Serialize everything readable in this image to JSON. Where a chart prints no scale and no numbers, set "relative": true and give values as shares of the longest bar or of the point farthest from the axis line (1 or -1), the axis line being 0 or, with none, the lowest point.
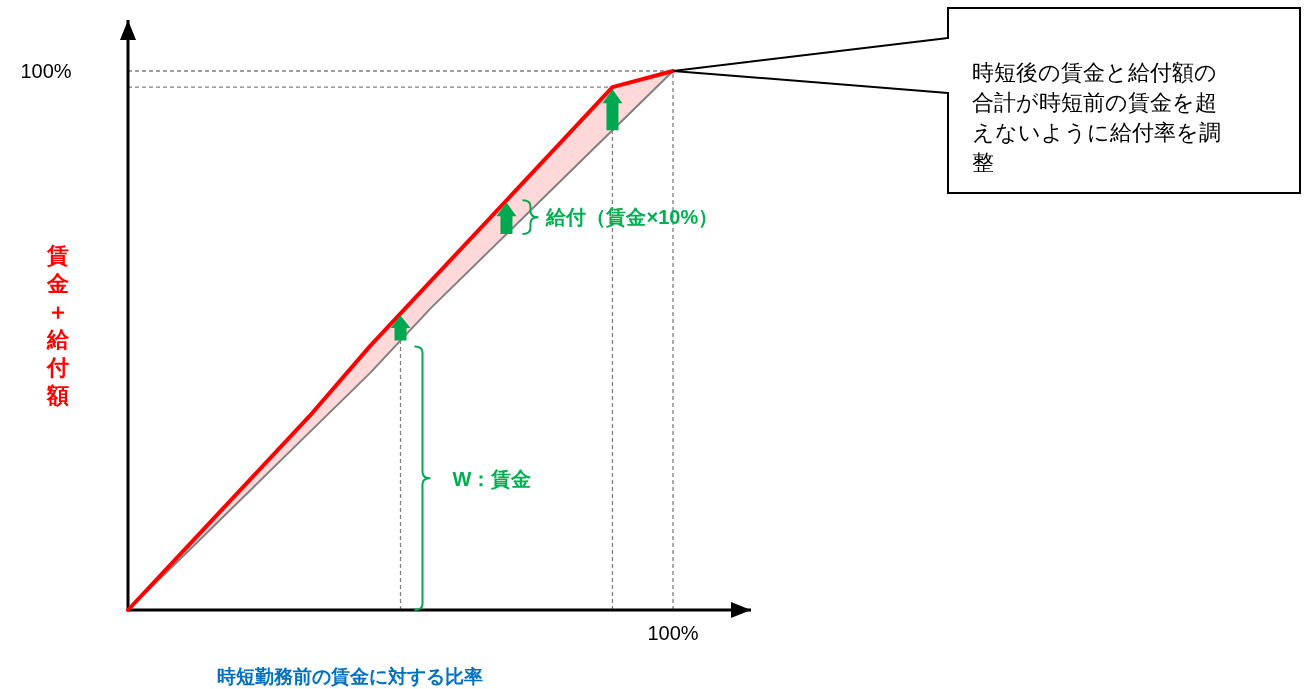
{
  "chart_data": {
    "type": "line",
    "relative": true,
    "xlabel": "時短勤務前の賃金に対する比率",
    "ylabel": "賃金＋給付額",
    "categories": [
      null,
      null,
      null,
      null,
      null,
      null,
      null,
      null,
      null,
      null
    ],
    "series": [
      {
        "color": "#808080",
        "values": [
          0,
          0.11,
          0.22,
          0.33,
          0.44,
          0.56,
          0.67,
          0.78,
          0.89,
          1
        ]
      },
      {
        "color": "#ff0000",
        "values": [
          0,
          0.12,
          0.24,
          0.36,
          0.49,
          0.61,
          0.73,
          0.85,
          0.97,
          1
        ],
        "lower": [
          0,
          0.11,
          0.22,
          0.33,
          0.44,
          0.56,
          0.67,
          0.78,
          0.89,
          1
        ],
        "upper": [
          0,
          0.12,
          0.24,
          0.36,
          0.49,
          0.61,
          0.73,
          0.85,
          0.97,
          1
        ]
      }
    ],
    "annotations": [
      "100%",
      "100%",
      "給付（賃金×10%）",
      "W：賃金",
      "時短後の賃金と給付額の合計が時短前の賃金を超えないように給付率を調整"
    ]
  }
}
